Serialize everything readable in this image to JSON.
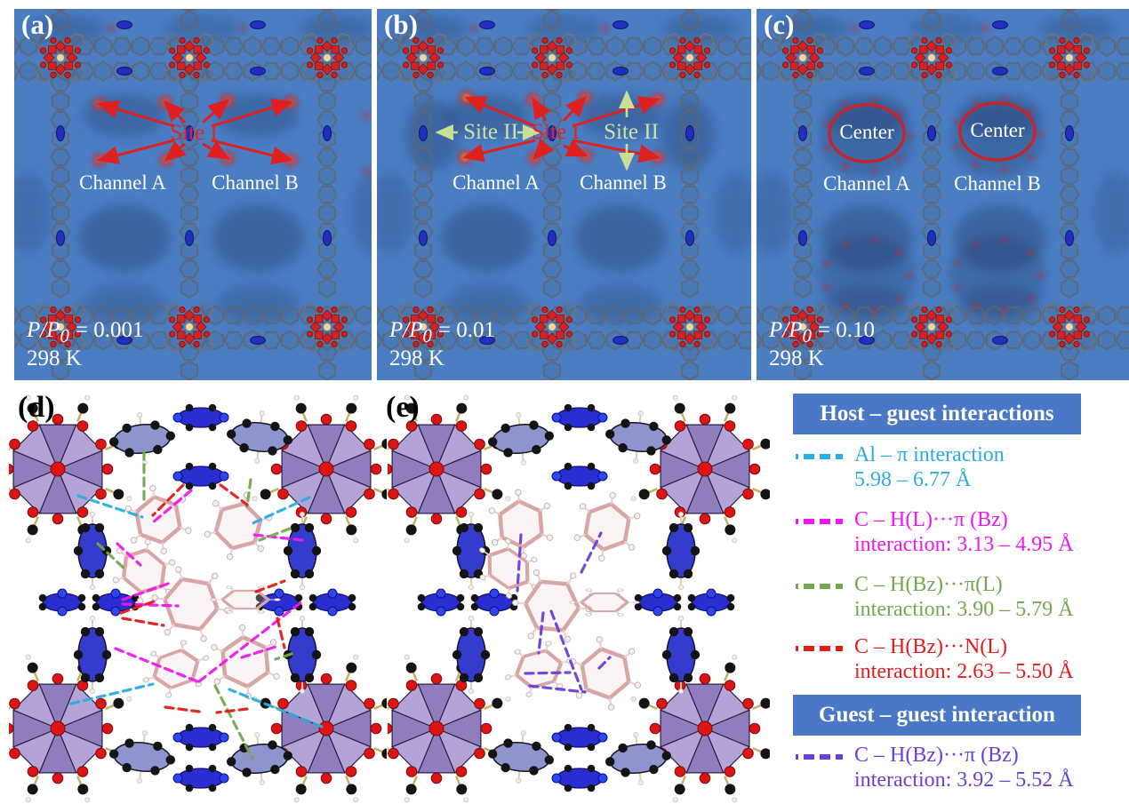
{
  "panels": {
    "a": {
      "label": "(a)",
      "site1": "Site I",
      "channel_a": "Channel A",
      "channel_b": "Channel B",
      "pp_prefix": "P/P",
      "pp_sub": "0",
      "pp_value": "= 0.001",
      "temp": "298 K"
    },
    "b": {
      "label": "(b)",
      "site1": "Site I",
      "site2_left": "Site II",
      "site2_right": "Site II",
      "channel_a": "Channel A",
      "channel_b": "Channel B",
      "pp_prefix": "P/P",
      "pp_sub": "0",
      "pp_value": "= 0.01",
      "temp": "298 K"
    },
    "c": {
      "label": "(c)",
      "center_a": "Center",
      "center_b": "Center",
      "channel_a": "Channel A",
      "channel_b": "Channel B",
      "pp_prefix": "P/P",
      "pp_sub": "0",
      "pp_value": "= 0.10",
      "temp": "298 K"
    },
    "d": {
      "label": "(d)"
    },
    "e": {
      "label": "(e)"
    }
  },
  "legend": {
    "host": {
      "title": "Host – guest interactions",
      "items": [
        {
          "name": "al-pi-interaction",
          "color": "#2bace2",
          "line1": "Al – π  interaction",
          "line2": "5.98 – 6.77 Å"
        },
        {
          "name": "ch-l-pi-bz-interaction",
          "color": "#ee18ee",
          "line1": "C – H(L)···π (Bz)",
          "line2": "interaction: 3.13 – 4.95 Å"
        },
        {
          "name": "ch-bz-pi-l-interaction",
          "color": "#74a84e",
          "line1": "C – H(Bz)···π(L)",
          "line2": "interaction: 3.90 – 5.79 Å"
        },
        {
          "name": "ch-bz-n-l-interaction",
          "color": "#e31b1b",
          "line1": "C – H(Bz)···N(L)",
          "line2": "interaction: 2.63 – 5.50 Å"
        }
      ]
    },
    "guest": {
      "title": "Guest – guest interaction",
      "items": [
        {
          "name": "ch-bz-pi-bz-interaction",
          "color": "#6741d9",
          "line1": "C – H(Bz)···π (Bz)",
          "line2": "interaction: 3.92 – 5.52 Å"
        }
      ]
    }
  },
  "colors": {
    "panel_background_blue": "#4a7dc2",
    "arrow_red": "#e01f1f",
    "site2_arrow_green": "#c9de96",
    "center_ellipse_red": "#c6242c",
    "legend_header_bg": "#4a77c6"
  }
}
